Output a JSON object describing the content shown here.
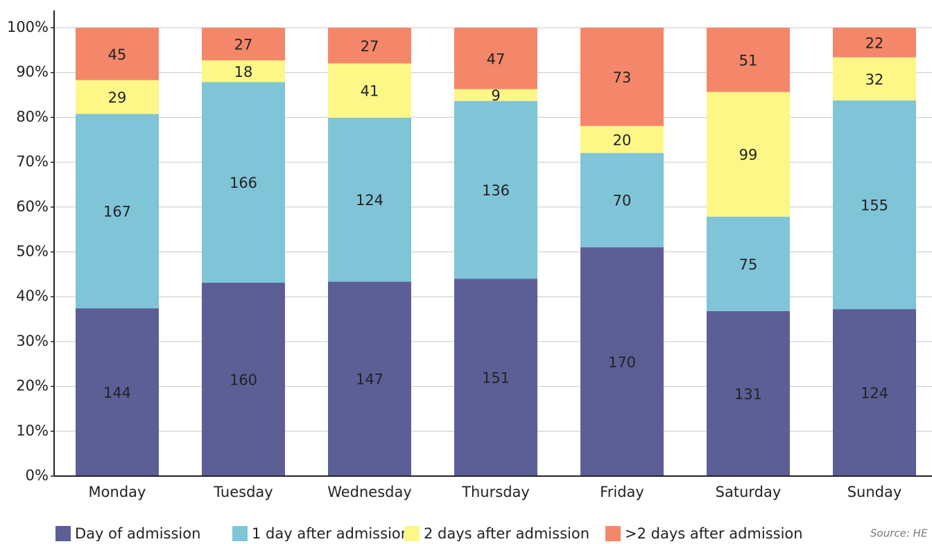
{
  "chart_data": {
    "type": "bar",
    "stacked": "percent",
    "categories": [
      "Monday",
      "Tuesday",
      "Wednesday",
      "Thursday",
      "Friday",
      "Saturday",
      "Sunday"
    ],
    "series": [
      {
        "name": "Day of admission",
        "color": "#5c5f96",
        "values": [
          144,
          160,
          147,
          151,
          170,
          131,
          124
        ]
      },
      {
        "name": "1 day after admission",
        "color": "#80c4d8",
        "values": [
          167,
          166,
          124,
          136,
          70,
          75,
          155
        ]
      },
      {
        "name": "2 days after admission",
        "color": "#fcf787",
        "values": [
          29,
          18,
          41,
          9,
          20,
          99,
          32
        ]
      },
      {
        "name": ">2 days after admission",
        "color": "#f4876a",
        "values": [
          45,
          27,
          27,
          47,
          73,
          51,
          22
        ]
      }
    ],
    "ylim": [
      0,
      100
    ],
    "yticks": [
      {
        "value": 0,
        "label": "0%"
      },
      {
        "value": 10,
        "label": "10%"
      },
      {
        "value": 20,
        "label": "20%"
      },
      {
        "value": 30,
        "label": "30%"
      },
      {
        "value": 40,
        "label": "40%"
      },
      {
        "value": 50,
        "label": "50%"
      },
      {
        "value": 60,
        "label": "60%"
      },
      {
        "value": 70,
        "label": "70%"
      },
      {
        "value": 80,
        "label": "80%"
      },
      {
        "value": 90,
        "label": "90%"
      },
      {
        "value": 100,
        "label": "100%"
      }
    ],
    "grid": true,
    "legend": "bottom",
    "source": "Source: HE"
  }
}
